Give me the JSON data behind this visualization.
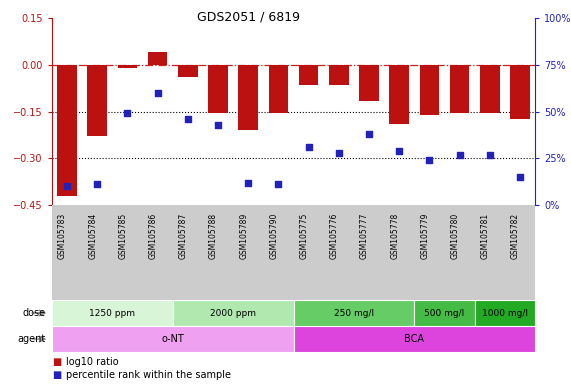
{
  "title": "GDS2051 / 6819",
  "samples": [
    "GSM105783",
    "GSM105784",
    "GSM105785",
    "GSM105786",
    "GSM105787",
    "GSM105788",
    "GSM105789",
    "GSM105790",
    "GSM105775",
    "GSM105776",
    "GSM105777",
    "GSM105778",
    "GSM105779",
    "GSM105780",
    "GSM105781",
    "GSM105782"
  ],
  "log10_ratio": [
    -0.42,
    -0.23,
    -0.01,
    0.04,
    -0.04,
    -0.155,
    -0.21,
    -0.155,
    -0.065,
    -0.065,
    -0.115,
    -0.19,
    -0.16,
    -0.155,
    -0.155,
    -0.175
  ],
  "percentile_rank": [
    10,
    11,
    49,
    60,
    46,
    43,
    12,
    11,
    31,
    28,
    38,
    29,
    24,
    27,
    27,
    15
  ],
  "ylim_left": [
    -0.45,
    0.15
  ],
  "ylim_right": [
    0,
    100
  ],
  "yticks_left": [
    -0.45,
    -0.3,
    -0.15,
    0.0,
    0.15
  ],
  "yticks_right": [
    0,
    25,
    50,
    75,
    100
  ],
  "hline_zero": 0.0,
  "hlines_dotted": [
    -0.15,
    -0.3
  ],
  "dose_groups": [
    {
      "label": "1250 ppm",
      "start": 0,
      "end": 4,
      "color": "#d8f5d8"
    },
    {
      "label": "2000 ppm",
      "start": 4,
      "end": 8,
      "color": "#b0e8b0"
    },
    {
      "label": "250 mg/l",
      "start": 8,
      "end": 12,
      "color": "#66cc66"
    },
    {
      "label": "500 mg/l",
      "start": 12,
      "end": 14,
      "color": "#44bb44"
    },
    {
      "label": "1000 mg/l",
      "start": 14,
      "end": 16,
      "color": "#22aa22"
    }
  ],
  "agent_groups": [
    {
      "label": "o-NT",
      "start": 0,
      "end": 8,
      "color": "#f0a0f0"
    },
    {
      "label": "BCA",
      "start": 8,
      "end": 16,
      "color": "#dd44dd"
    }
  ],
  "bar_color": "#bb1111",
  "scatter_color": "#2222bb",
  "dashed_line_color": "#cc2222",
  "label_log10": "log10 ratio",
  "label_pct": "percentile rank within the sample",
  "bg_color": "#ffffff",
  "sample_area_color": "#cccccc",
  "dose_label": "dose",
  "agent_label": "agent"
}
